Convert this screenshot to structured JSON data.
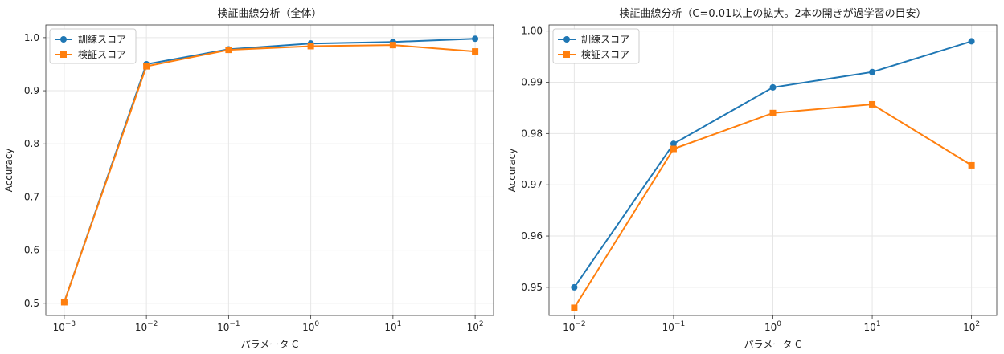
{
  "chart_data": [
    {
      "type": "line",
      "title": "検証曲線分析（全体）",
      "xlabel": "パラメータ C",
      "ylabel": "Accuracy",
      "x_scale": "log",
      "x": [
        0.001,
        0.01,
        0.1,
        1,
        10,
        100
      ],
      "x_tick_labels": [
        {
          "base": "10",
          "exp": "−3"
        },
        {
          "base": "10",
          "exp": "−2"
        },
        {
          "base": "10",
          "exp": "−1"
        },
        {
          "base": "10",
          "exp": "0"
        },
        {
          "base": "10",
          "exp": "1"
        },
        {
          "base": "10",
          "exp": "2"
        }
      ],
      "y_ticks": [
        0.5,
        0.6,
        0.7,
        0.8,
        0.9,
        1.0
      ],
      "y_tick_labels": [
        "0.5",
        "0.6",
        "0.7",
        "0.8",
        "0.9",
        "1.0"
      ],
      "ylim": [
        0.477,
        1.024
      ],
      "grid": true,
      "legend_position": "top-left",
      "series": [
        {
          "name": "訓練スコア",
          "color": "#1f77b4",
          "marker": "circle",
          "values": [
            0.502,
            0.95,
            0.978,
            0.989,
            0.992,
            0.998
          ]
        },
        {
          "name": "検証スコア",
          "color": "#ff7f0e",
          "marker": "square",
          "values": [
            0.502,
            0.946,
            0.977,
            0.984,
            0.986,
            0.974
          ]
        }
      ]
    },
    {
      "type": "line",
      "title": "検証曲線分析（C=0.01以上の拡大。2本の開きが過学習の目安）",
      "xlabel": "パラメータ C",
      "ylabel": "Accuracy",
      "x_scale": "log",
      "x": [
        0.01,
        0.1,
        1,
        10,
        100
      ],
      "x_tick_labels": [
        {
          "base": "10",
          "exp": "−2"
        },
        {
          "base": "10",
          "exp": "−1"
        },
        {
          "base": "10",
          "exp": "0"
        },
        {
          "base": "10",
          "exp": "1"
        },
        {
          "base": "10",
          "exp": "2"
        }
      ],
      "y_ticks": [
        0.95,
        0.96,
        0.97,
        0.98,
        0.99,
        1.0
      ],
      "y_tick_labels": [
        "0.95",
        "0.96",
        "0.97",
        "0.98",
        "0.99",
        "1.00"
      ],
      "ylim": [
        0.9445,
        1.0012
      ],
      "grid": true,
      "legend_position": "top-left",
      "series": [
        {
          "name": "訓練スコア",
          "color": "#1f77b4",
          "marker": "circle",
          "values": [
            0.95,
            0.978,
            0.989,
            0.992,
            0.998
          ]
        },
        {
          "name": "検証スコア",
          "color": "#ff7f0e",
          "marker": "square",
          "values": [
            0.946,
            0.977,
            0.984,
            0.9857,
            0.9738
          ]
        }
      ]
    }
  ]
}
